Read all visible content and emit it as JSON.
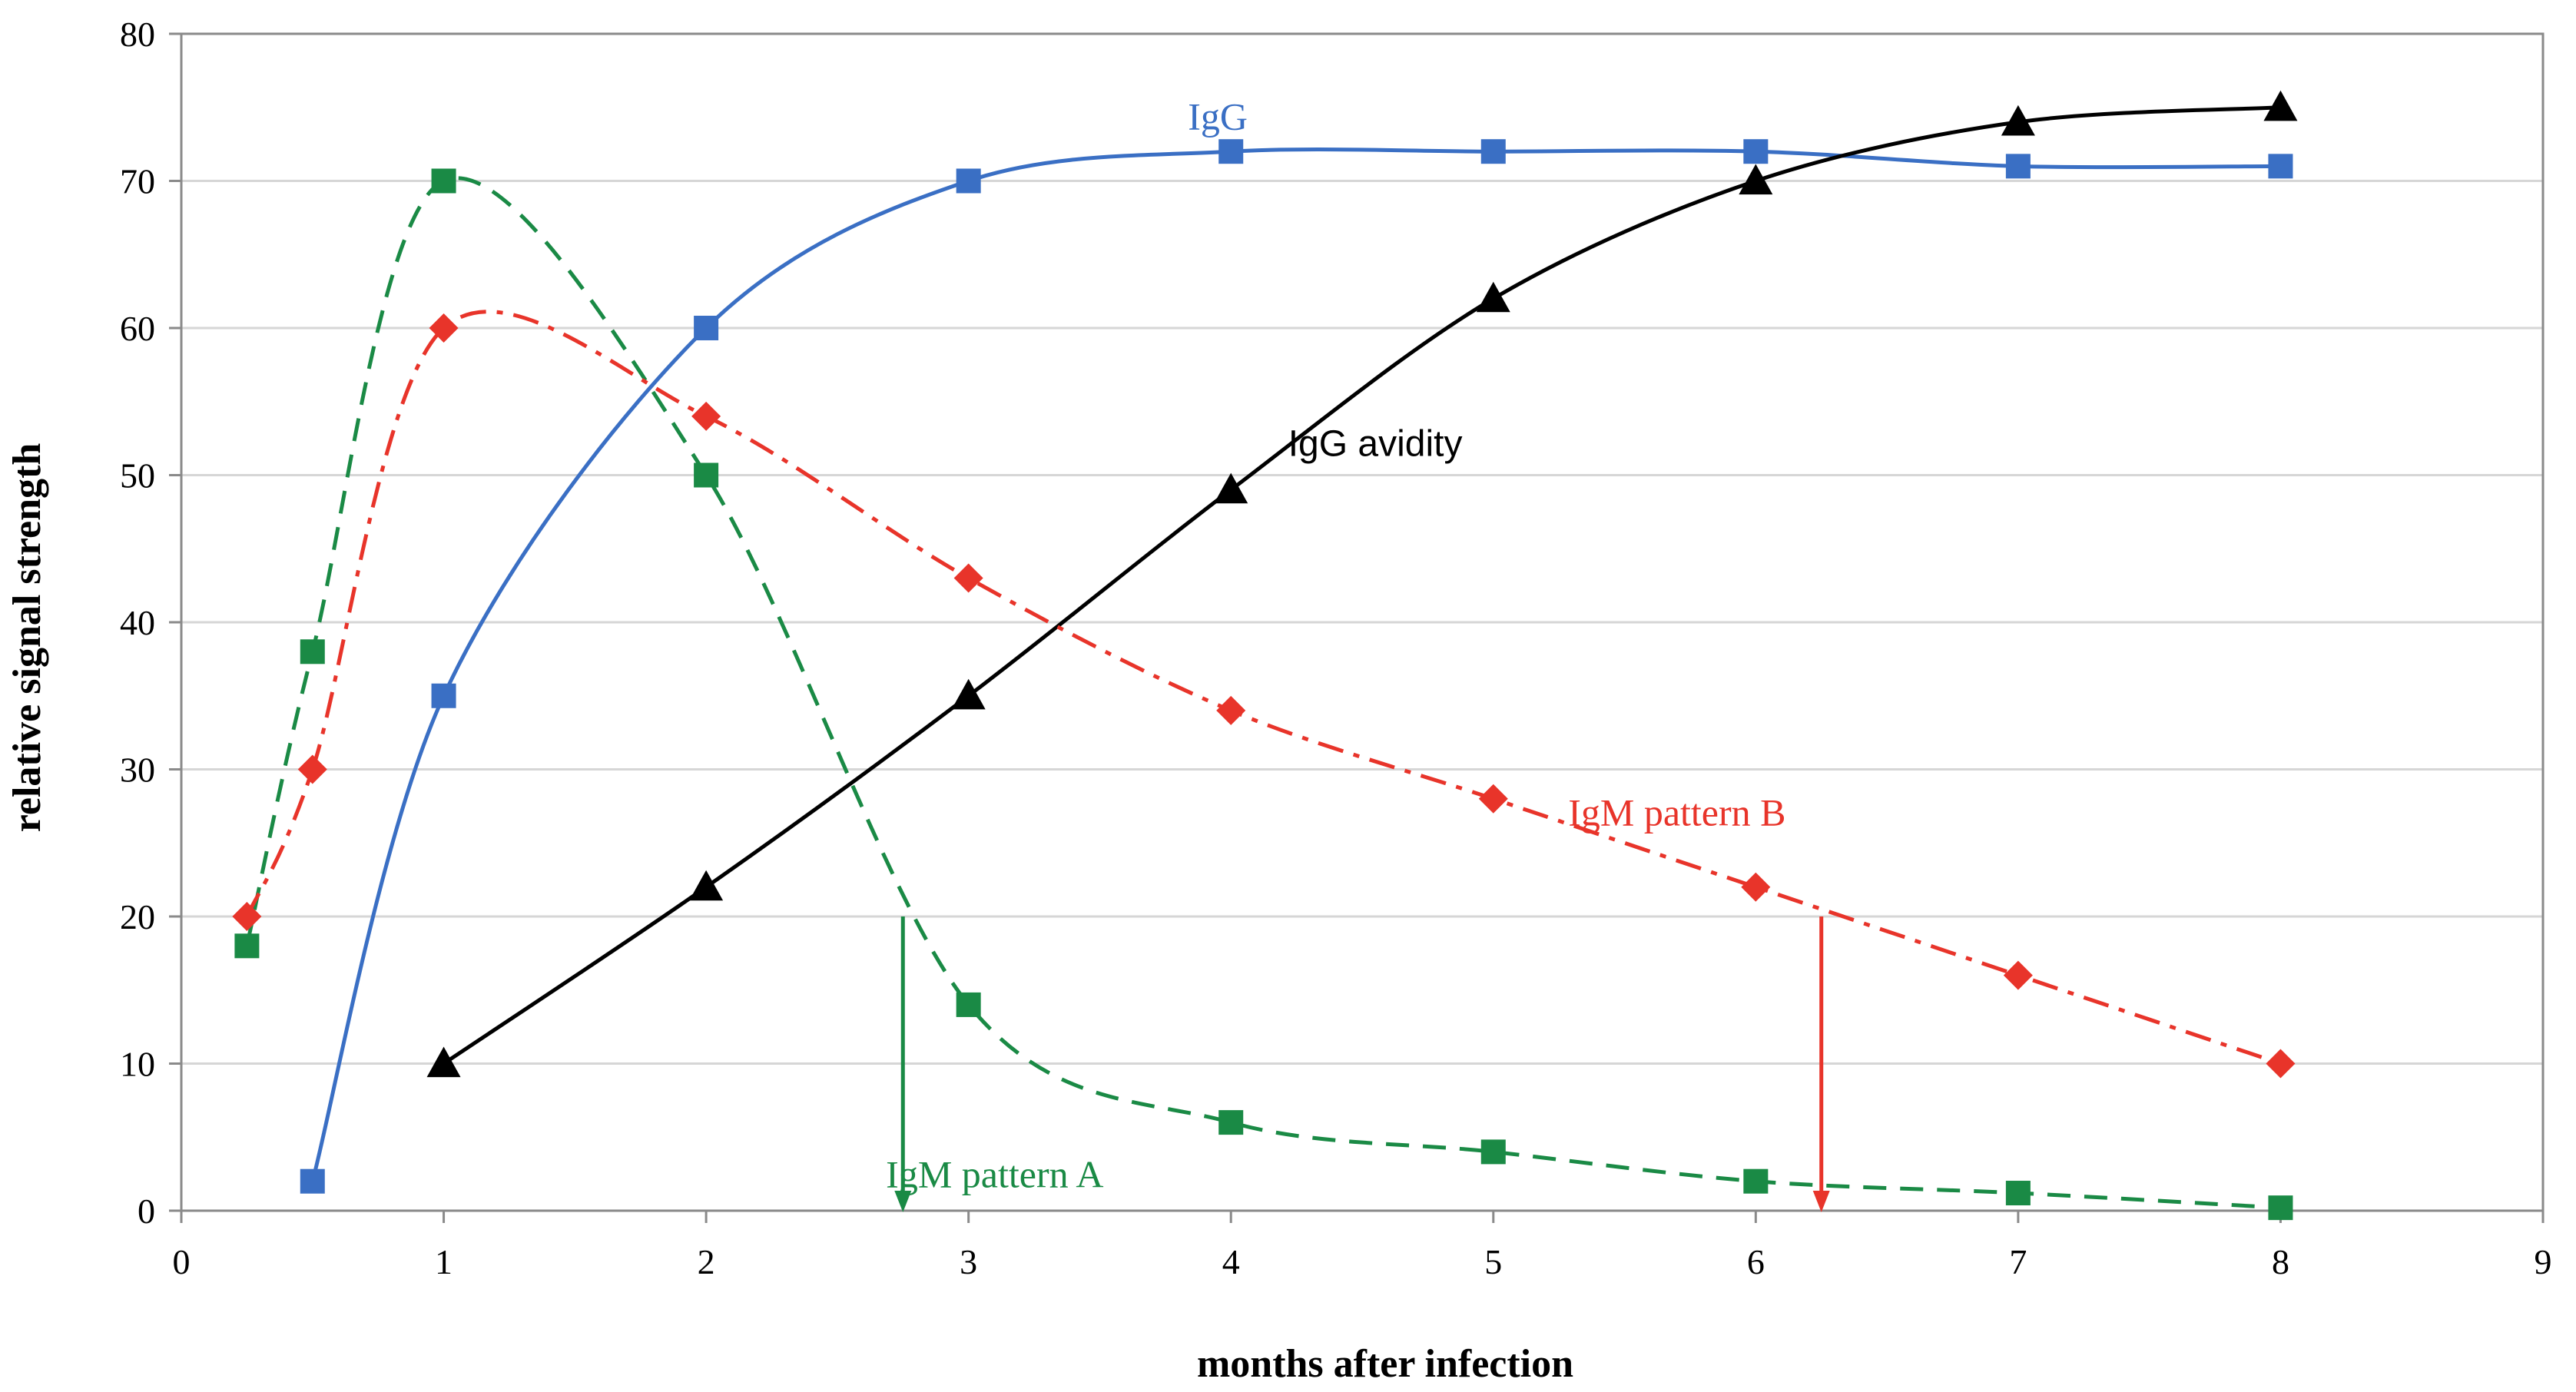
{
  "chart_data": {
    "type": "line",
    "title": "",
    "xlabel": "months after infection",
    "ylabel": "relative signal strength",
    "xlim": [
      0,
      9
    ],
    "ylim": [
      0,
      80
    ],
    "xticks": [
      "0",
      "1",
      "2",
      "3",
      "4",
      "5",
      "6",
      "7",
      "8",
      "9"
    ],
    "yticks": [
      "0",
      "10",
      "20",
      "30",
      "40",
      "50",
      "60",
      "70",
      "80"
    ],
    "grid": "horizontal",
    "series": [
      {
        "name": "IgG",
        "color": "#3a6fc4",
        "marker": "square",
        "line_style": "solid",
        "x": [
          0.5,
          1,
          2,
          3,
          4,
          5,
          6,
          7,
          8
        ],
        "y": [
          2,
          35,
          60,
          70,
          72,
          72,
          72,
          71,
          71
        ]
      },
      {
        "name": "IgG avidity",
        "color": "#000000",
        "marker": "triangle",
        "line_style": "solid",
        "x": [
          1,
          2,
          3,
          4,
          5,
          6,
          7,
          8
        ],
        "y": [
          10,
          22,
          35,
          49,
          62,
          70,
          74,
          75
        ]
      },
      {
        "name": "IgM pattern A",
        "color": "#1a8a45",
        "marker": "square",
        "line_style": "dashed",
        "x": [
          0.25,
          0.5,
          1,
          2,
          3,
          4,
          5,
          6,
          7,
          8
        ],
        "y": [
          18,
          38,
          70,
          50,
          14,
          6,
          4,
          2,
          1.2,
          0.2
        ]
      },
      {
        "name": "IgM pattern B",
        "color": "#e8342a",
        "marker": "diamond",
        "line_style": "dashdot",
        "x": [
          0.25,
          0.5,
          1,
          2,
          3,
          4,
          5,
          6,
          7,
          8
        ],
        "y": [
          20,
          30,
          60,
          54,
          43,
          34,
          28,
          22,
          16,
          10
        ]
      }
    ],
    "annotations": [
      {
        "type": "arrow",
        "series": "IgM pattern A",
        "x": 2.75,
        "y_from": 20,
        "y_to": 0,
        "color": "#1a8a45"
      },
      {
        "type": "arrow",
        "series": "IgM pattern B",
        "x": 6.25,
        "y_from": 20,
        "y_to": 0,
        "color": "#e8342a"
      }
    ],
    "labels": [
      {
        "text": "IgG",
        "series": "IgG",
        "x": 3.95,
        "y": 73.5
      },
      {
        "text": "IgG avidity",
        "series": "IgG avidity",
        "x": 4.55,
        "y": 51.3
      },
      {
        "text": "IgM pattern B",
        "series": "IgM pattern B",
        "x": 5.7,
        "y": 26.2
      },
      {
        "text": "IgM pattern A",
        "series": "IgM pattern A",
        "x": 3.1,
        "y": 1.6
      }
    ]
  }
}
